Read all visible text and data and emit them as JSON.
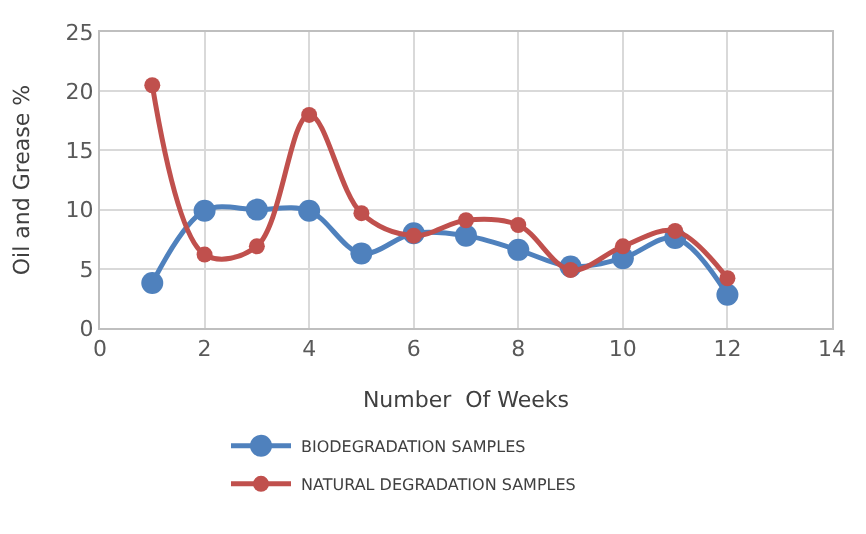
{
  "chart_data": {
    "type": "line",
    "xlabel": "Number  Of Weeks",
    "ylabel": "Oil and Grease %",
    "x": [
      1,
      2,
      3,
      4,
      5,
      6,
      7,
      8,
      9,
      10,
      11,
      12
    ],
    "series": [
      {
        "name": "BIODEGRADATION SAMPLES",
        "color": "#4f81bd",
        "values": [
          3.8,
          9.9,
          10.0,
          9.9,
          6.3,
          8.0,
          7.8,
          6.6,
          5.2,
          5.9,
          7.6,
          2.8
        ]
      },
      {
        "name": "NATURAL DEGRADATION SAMPLES",
        "color": "#c0504d",
        "values": [
          20.5,
          6.2,
          6.9,
          18.0,
          9.7,
          7.8,
          9.1,
          8.7,
          4.9,
          6.9,
          8.2,
          4.2
        ]
      }
    ],
    "xlim": [
      0,
      14
    ],
    "xticks": [
      0,
      2,
      4,
      6,
      8,
      10,
      12,
      14
    ],
    "ylim": [
      0,
      25
    ],
    "yticks": [
      0,
      5,
      10,
      15,
      20,
      25
    ],
    "grid": true,
    "legend": "bottom",
    "marker": "circle",
    "line_style": "solid"
  }
}
